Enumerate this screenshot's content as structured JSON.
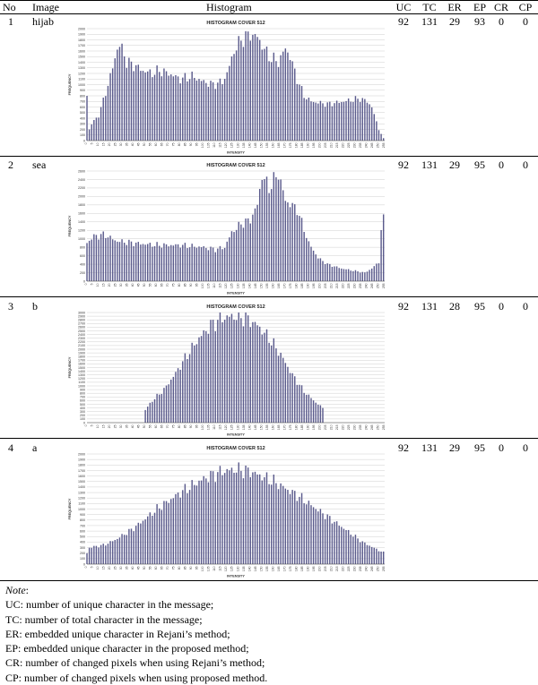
{
  "table": {
    "headers": [
      "No",
      "Image",
      "Histogram",
      "UC",
      "TC",
      "ER",
      "EP",
      "CR",
      "CP"
    ],
    "rows": [
      {
        "no": "1",
        "image": "hijab",
        "uc": "92",
        "tc": "131",
        "er": "29",
        "ep": "93",
        "cr": "0",
        "cp": "0",
        "chart_data": {
          "type": "bar",
          "title": "HISTOGRAM COVER 512",
          "xlabel": "INTENSITY",
          "ylabel": "FREQUENCY",
          "ylim": [
            0,
            2000
          ],
          "ytick_step": 100,
          "xlim": [
            0,
            255
          ],
          "xtick_step": 5,
          "bar_step": 2,
          "grid": true,
          "profile": [
            [
              0,
              800
            ],
            [
              1,
              150
            ],
            [
              4,
              300
            ],
            [
              10,
              450
            ],
            [
              16,
              850
            ],
            [
              22,
              1300
            ],
            [
              26,
              1650
            ],
            [
              28,
              1700
            ],
            [
              31,
              1600
            ],
            [
              34,
              1400
            ],
            [
              40,
              1350
            ],
            [
              48,
              1250
            ],
            [
              56,
              1200
            ],
            [
              62,
              1250
            ],
            [
              70,
              1200
            ],
            [
              80,
              1100
            ],
            [
              90,
              1150
            ],
            [
              100,
              1050
            ],
            [
              108,
              1000
            ],
            [
              116,
              1050
            ],
            [
              120,
              1200
            ],
            [
              126,
              1600
            ],
            [
              132,
              1800
            ],
            [
              140,
              1900
            ],
            [
              146,
              1850
            ],
            [
              150,
              1700
            ],
            [
              156,
              1500
            ],
            [
              164,
              1400
            ],
            [
              170,
              1650
            ],
            [
              174,
              1500
            ],
            [
              180,
              1100
            ],
            [
              186,
              800
            ],
            [
              192,
              700
            ],
            [
              206,
              650
            ],
            [
              220,
              700
            ],
            [
              234,
              750
            ],
            [
              240,
              700
            ],
            [
              244,
              600
            ],
            [
              250,
              200
            ],
            [
              255,
              0
            ]
          ]
        }
      },
      {
        "no": "2",
        "image": "sea",
        "uc": "92",
        "tc": "131",
        "er": "29",
        "ep": "95",
        "cr": "0",
        "cp": "0",
        "chart_data": {
          "type": "bar",
          "title": "HISTOGRAM COVER 512",
          "xlabel": "INTENSITY",
          "ylabel": "FREQUENCY",
          "ylim": [
            0,
            2600
          ],
          "ytick_step": 200,
          "xlim": [
            0,
            255
          ],
          "xtick_step": 5,
          "bar_step": 2,
          "grid": true,
          "profile": [
            [
              0,
              900
            ],
            [
              5,
              1050
            ],
            [
              15,
              1100
            ],
            [
              25,
              950
            ],
            [
              40,
              900
            ],
            [
              60,
              850
            ],
            [
              80,
              850
            ],
            [
              100,
              800
            ],
            [
              110,
              750
            ],
            [
              118,
              800
            ],
            [
              124,
              1150
            ],
            [
              132,
              1350
            ],
            [
              140,
              1450
            ],
            [
              146,
              1800
            ],
            [
              150,
              2500
            ],
            [
              156,
              2200
            ],
            [
              164,
              2550
            ],
            [
              170,
              1900
            ],
            [
              180,
              1700
            ],
            [
              190,
              900
            ],
            [
              198,
              550
            ],
            [
              206,
              400
            ],
            [
              218,
              300
            ],
            [
              228,
              250
            ],
            [
              238,
              200
            ],
            [
              244,
              300
            ],
            [
              250,
              450
            ],
            [
              253,
              1600
            ],
            [
              255,
              1300
            ]
          ]
        }
      },
      {
        "no": "3",
        "image": "b",
        "uc": "92",
        "tc": "131",
        "er": "28",
        "ep": "95",
        "cr": "0",
        "cp": "0",
        "chart_data": {
          "type": "bar",
          "title": "HISTOGRAM COVER 512",
          "xlabel": "INTENSITY",
          "ylabel": "FREQUENCY",
          "ylim": [
            0,
            3000
          ],
          "ytick_step": 100,
          "xlim": [
            0,
            255
          ],
          "xtick_step": 5,
          "bar_step": 2,
          "grid": true,
          "profile": [
            [
              0,
              0
            ],
            [
              49,
              0
            ],
            [
              50,
              350
            ],
            [
              56,
              600
            ],
            [
              66,
              900
            ],
            [
              76,
              1350
            ],
            [
              86,
              1850
            ],
            [
              96,
              2300
            ],
            [
              106,
              2650
            ],
            [
              116,
              2850
            ],
            [
              126,
              2900
            ],
            [
              136,
              2850
            ],
            [
              146,
              2650
            ],
            [
              156,
              2300
            ],
            [
              166,
              1850
            ],
            [
              176,
              1300
            ],
            [
              186,
              850
            ],
            [
              196,
              550
            ],
            [
              202,
              400
            ],
            [
              203,
              0
            ],
            [
              255,
              0
            ]
          ]
        }
      },
      {
        "no": "4",
        "image": "a",
        "uc": "92",
        "tc": "131",
        "er": "29",
        "ep": "95",
        "cr": "0",
        "cp": "0",
        "chart_data": {
          "type": "bar",
          "title": "HISTOGRAM COVER 512",
          "xlabel": "INTENSITY",
          "ylabel": "FREQUENCY",
          "ylim": [
            0,
            2000
          ],
          "ytick_step": 100,
          "xlim": [
            0,
            255
          ],
          "xtick_step": 5,
          "bar_step": 2,
          "grid": true,
          "profile": [
            [
              0,
              200
            ],
            [
              2,
              300
            ],
            [
              15,
              350
            ],
            [
              25,
              450
            ],
            [
              40,
              650
            ],
            [
              60,
              1000
            ],
            [
              80,
              1300
            ],
            [
              100,
              1550
            ],
            [
              115,
              1680
            ],
            [
              128,
              1720
            ],
            [
              140,
              1680
            ],
            [
              160,
              1500
            ],
            [
              180,
              1250
            ],
            [
              200,
              950
            ],
            [
              220,
              650
            ],
            [
              236,
              400
            ],
            [
              250,
              250
            ],
            [
              255,
              200
            ]
          ]
        }
      }
    ]
  },
  "notes": {
    "heading": "Note",
    "heading_suffix": ":",
    "lines": [
      "UC: number of unique character in the message;",
      "TC: number of total character in the message;",
      "ER: embedded unique character in Rejani’s method;",
      "EP: embedded unique character in the proposed method;",
      "CR: number of changed pixels when using Rejani’s method;",
      "CP: number of changed pixels when using proposed method."
    ]
  }
}
